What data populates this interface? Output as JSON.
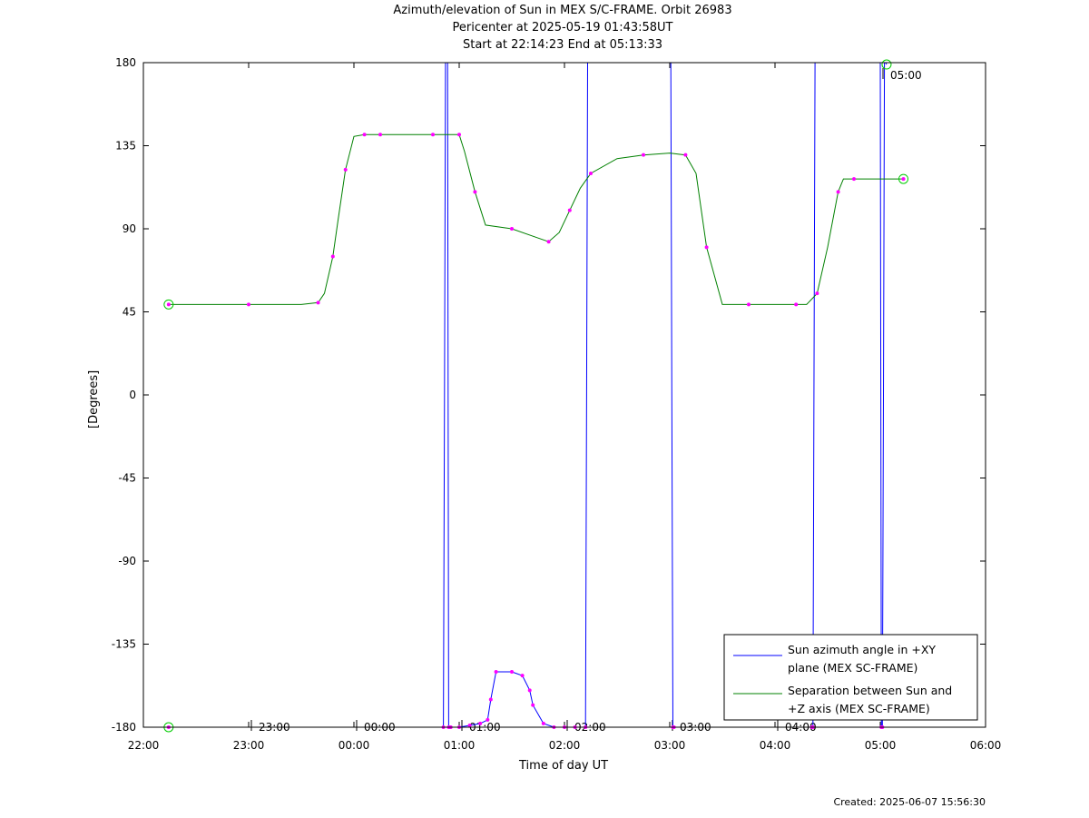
{
  "title": {
    "line1": "Azimuth/elevation of Sun in MEX S/C-FRAME.  Orbit 26983",
    "line2": "Pericenter at 2025-05-19 01:43:58UT",
    "line3": "Start at 22:14:23 End at 05:13:33"
  },
  "created": "Created: 2025-06-07 15:56:30",
  "colors": {
    "azimuth": "#0000ff",
    "separation": "#008000",
    "markers": "#ff00ff",
    "circles": "#00cc00",
    "axis": "#000000"
  },
  "chart_data": {
    "type": "line",
    "xlabel": "Time of day UT",
    "ylabel": "[Degrees]",
    "x_unit": "hours since 22:00 UT",
    "xlim": [
      0,
      8
    ],
    "ylim": [
      -180,
      180
    ],
    "x_tick_labels": [
      "22:00",
      "23:00",
      "00:00",
      "01:00",
      "02:00",
      "03:00",
      "04:00",
      "05:00",
      "06:00"
    ],
    "y_ticks": [
      180,
      135,
      90,
      45,
      0,
      -45,
      -90,
      -135,
      -180
    ],
    "hour_marks": [
      "23:00",
      "00:00",
      "01:00",
      "02:00",
      "03:00",
      "04:00",
      "05:00"
    ],
    "legend": {
      "position": "bottom-right",
      "entries": [
        {
          "line1": "Sun azimuth angle in +XY",
          "line2": "plane (MEX SC-FRAME)"
        },
        {
          "line1": "Separation between Sun and",
          "line2": "+Z axis (MEX SC-FRAME)"
        }
      ]
    },
    "series": [
      {
        "name": "Sun azimuth angle in +XY plane (MEX SC-FRAME)",
        "color": "#0000ff",
        "x": [
          0.24,
          2.85,
          2.86,
          2.87,
          2.89,
          2.9,
          2.91,
          2.92,
          3.0,
          3.1,
          3.2,
          3.27,
          3.3,
          3.35,
          3.5,
          3.6,
          3.67,
          3.7,
          3.8,
          3.9,
          4.0,
          4.1,
          4.2,
          4.21,
          4.22,
          4.23,
          4.24,
          5.0,
          5.01,
          5.02,
          5.03,
          5.04,
          6.35,
          6.36,
          6.37,
          6.38,
          6.39,
          7.0,
          7.01,
          7.02,
          7.03,
          7.04,
          7.05,
          7.06
        ],
        "y": [
          -180,
          -180,
          0,
          180,
          180,
          -180,
          -180,
          -180,
          -180,
          -179,
          -178,
          -176,
          -165,
          -150,
          -150,
          -152,
          -160,
          -168,
          -178,
          -180,
          -180,
          -180,
          -180,
          0,
          180,
          180,
          180,
          180,
          180,
          0,
          -180,
          -180,
          -180,
          -180,
          0,
          180,
          180,
          180,
          -180,
          -180,
          0,
          180,
          180,
          179
        ]
      },
      {
        "name": "Separation between Sun and +Z axis (MEX SC-FRAME)",
        "color": "#008000",
        "x": [
          0.24,
          0.5,
          1.0,
          1.5,
          1.66,
          1.72,
          1.8,
          1.85,
          1.92,
          2.0,
          2.1,
          2.15,
          2.25,
          2.5,
          2.75,
          2.95,
          3.0,
          3.05,
          3.15,
          3.25,
          3.5,
          3.75,
          3.85,
          3.95,
          4.05,
          4.15,
          4.25,
          4.5,
          4.75,
          5.0,
          5.15,
          5.25,
          5.35,
          5.5,
          5.75,
          6.0,
          6.2,
          6.3,
          6.4,
          6.5,
          6.6,
          6.65,
          6.75,
          7.0,
          7.22
        ],
        "y": [
          49,
          49,
          49,
          49,
          50,
          55,
          75,
          95,
          122,
          140,
          141,
          141,
          141,
          141,
          141,
          141,
          141,
          132,
          110,
          92,
          90,
          85,
          83,
          88,
          100,
          112,
          120,
          128,
          130,
          131,
          130,
          120,
          80,
          49,
          49,
          49,
          49,
          49,
          55,
          80,
          110,
          117,
          117,
          117,
          117
        ]
      }
    ]
  }
}
